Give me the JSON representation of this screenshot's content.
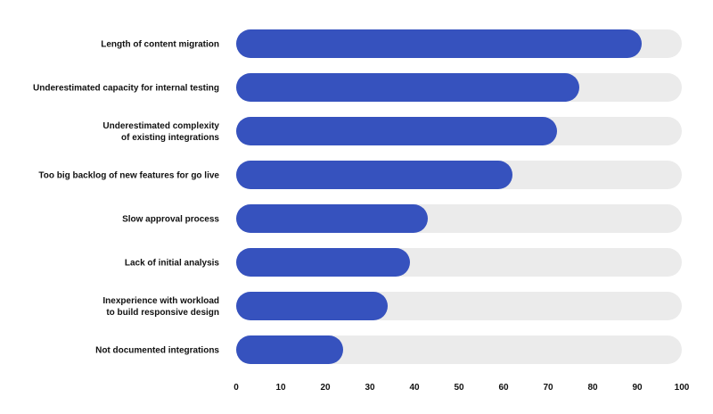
{
  "chart_data": {
    "type": "bar",
    "orientation": "horizontal",
    "categories": [
      [
        "Length of content migration"
      ],
      [
        "Underestimated capacity for internal testing"
      ],
      [
        "Underestimated complexity",
        "of existing integrations"
      ],
      [
        "Too big backlog of new features for go live"
      ],
      [
        "Slow approval process"
      ],
      [
        "Lack of initial analysis"
      ],
      [
        "Inexperience with workload",
        "to build responsive design"
      ],
      [
        "Not documented integrations"
      ]
    ],
    "values": [
      91,
      77,
      72,
      62,
      43,
      39,
      34,
      24
    ],
    "xlim": [
      0,
      100
    ],
    "xticks": [
      0,
      10,
      20,
      30,
      40,
      50,
      60,
      70,
      80,
      90,
      100
    ],
    "grid": false,
    "colors": {
      "bar": "#3652be",
      "track": "#ebebeb",
      "text": "#111111"
    }
  }
}
